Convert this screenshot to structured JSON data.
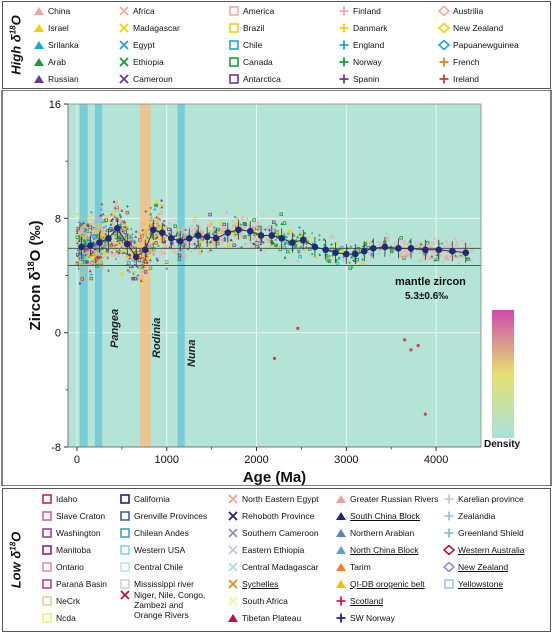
{
  "top_legend": {
    "title_main": "High δ",
    "title_sup": "18",
    "title_end": "O",
    "items": [
      {
        "label": "China",
        "marker": "tri-up",
        "color": "#f4a6a6"
      },
      {
        "label": "Africa",
        "marker": "x",
        "color": "#f4a6a6"
      },
      {
        "label": "America",
        "marker": "square",
        "color": "#f4a6a6"
      },
      {
        "label": "Finland",
        "marker": "plus",
        "color": "#f4a6a6"
      },
      {
        "label": "Austrilia",
        "marker": "diamond",
        "color": "#f4a6a6"
      },
      {
        "label": "Israel",
        "marker": "tri-up",
        "color": "#f2d000"
      },
      {
        "label": "Madagascar",
        "marker": "x",
        "color": "#f2d000"
      },
      {
        "label": "Brazil",
        "marker": "square",
        "color": "#f2d000"
      },
      {
        "label": "Danmark",
        "marker": "plus",
        "color": "#f2d000"
      },
      {
        "label": "New Zealand",
        "marker": "diamond",
        "color": "#f2d000"
      },
      {
        "label": "Srilanka",
        "marker": "tri-up",
        "color": "#1ba4d8"
      },
      {
        "label": "Egypt",
        "marker": "x",
        "color": "#1ba4d8"
      },
      {
        "label": "Chile",
        "marker": "square",
        "color": "#1ba4d8"
      },
      {
        "label": "England",
        "marker": "plus",
        "color": "#1ba4d8"
      },
      {
        "label": "Papuanewguinea",
        "marker": "diamond",
        "color": "#1ba4d8"
      },
      {
        "label": "Arab",
        "marker": "tri-up",
        "color": "#1a9a3a"
      },
      {
        "label": "Ethiopia",
        "marker": "x",
        "color": "#1a9a3a"
      },
      {
        "label": "Canada",
        "marker": "square",
        "color": "#1a9a3a"
      },
      {
        "label": "Norway",
        "marker": "plus",
        "color": "#1a9a3a"
      },
      {
        "label": "French",
        "marker": "plus",
        "color": "#f07a20"
      },
      {
        "label": "Russian",
        "marker": "tri-up",
        "color": "#6a3a9a"
      },
      {
        "label": "Cameroun",
        "marker": "x",
        "color": "#6a3a9a"
      },
      {
        "label": "Antarctica",
        "marker": "square",
        "color": "#6a3a9a"
      },
      {
        "label": "Spanin",
        "marker": "plus",
        "color": "#6a3a9a"
      },
      {
        "label": "Ireland",
        "marker": "plus",
        "color": "#c8402a"
      }
    ]
  },
  "bottom_legend": {
    "title_main": "Low δ",
    "title_sup": "18",
    "title_end": "O",
    "items": [
      {
        "label": "Idaho",
        "marker": "square",
        "color": "#c8205a",
        "underline": false
      },
      {
        "label": "California",
        "marker": "square",
        "color": "#20208a",
        "underline": false
      },
      {
        "label": "North Eastern Egypt",
        "marker": "x",
        "color": "#f0a0a0",
        "underline": false
      },
      {
        "label": "Greater Russian Rivers",
        "marker": "tri-up",
        "color": "#f0a0a0",
        "underline": false
      },
      {
        "label": "Karelian province",
        "marker": "plus",
        "color": "#c0c8e0",
        "underline": false
      },
      {
        "label": "Slave Craton",
        "marker": "square",
        "color": "#e06090",
        "underline": false
      },
      {
        "label": "Grenville Provinces",
        "marker": "square",
        "color": "#4060a0",
        "underline": false
      },
      {
        "label": "Rehoboth Province",
        "marker": "x",
        "color": "#20208a",
        "underline": false
      },
      {
        "label": "South China Block",
        "marker": "tri-up",
        "color": "#20208a",
        "underline": true
      },
      {
        "label": "Zealandia",
        "marker": "plus",
        "color": "#a0c0e0",
        "underline": false
      },
      {
        "label": "Washington",
        "marker": "square",
        "color": "#a04090",
        "underline": false
      },
      {
        "label": "Chilean Andes",
        "marker": "square",
        "color": "#40a0c0",
        "underline": false
      },
      {
        "label": "Southern Cameroon",
        "marker": "x",
        "color": "#9090c0",
        "underline": false
      },
      {
        "label": "Northern Arabian",
        "marker": "tri-up",
        "color": "#6080c0",
        "underline": false
      },
      {
        "label": "Greenland Shield",
        "marker": "plus",
        "color": "#80c0e0",
        "underline": false
      },
      {
        "label": "Manitoba",
        "marker": "square",
        "color": "#902080",
        "underline": false
      },
      {
        "label": "Western USA",
        "marker": "square",
        "color": "#80d0f0",
        "underline": false
      },
      {
        "label": "Eastern Ethiopia",
        "marker": "x",
        "color": "#c0c8e0",
        "underline": false
      },
      {
        "label": "North China Block",
        "marker": "tri-up",
        "color": "#60a0d0",
        "underline": true
      },
      {
        "label": "Western Australia",
        "marker": "diamond",
        "color": "#c01040",
        "underline": true
      },
      {
        "label": "Ontario",
        "marker": "square",
        "color": "#e090c0",
        "underline": false
      },
      {
        "label": "Central Chile",
        "marker": "square",
        "color": "#c0e0f0",
        "underline": false
      },
      {
        "label": "Central Madagascar",
        "marker": "x",
        "color": "#b0d8f0",
        "underline": false
      },
      {
        "label": "Tarim",
        "marker": "tri-up",
        "color": "#f08020",
        "underline": false
      },
      {
        "label": "New Zealand",
        "marker": "diamond",
        "color": "#9090d0",
        "underline": true
      },
      {
        "label": "Paraná Basin",
        "marker": "square",
        "color": "#c04090",
        "underline": false
      },
      {
        "label": "Mississippi river",
        "marker": "square",
        "color": "#d0d0e8",
        "underline": false
      },
      {
        "label": "Sychelles",
        "marker": "x",
        "color": "#e09020",
        "underline": true
      },
      {
        "label": "QI-DB orogenic belt",
        "marker": "tri-up",
        "color": "#f0c000",
        "underline": true
      },
      {
        "label": "Yellowstone",
        "marker": "square",
        "color": "#a0c8e8",
        "underline": true
      },
      {
        "label": "NeCrk",
        "marker": "square",
        "color": "#e0d0a0",
        "underline": false
      },
      {
        "label": "Niger, Nile, Congo,",
        "marker": "x",
        "color": "#c01040",
        "underline": false
      },
      {
        "label": "Zambezi and",
        "marker": "none",
        "color": "#c01040",
        "underline": false
      },
      {
        "label": "Orange Rivers",
        "marker": "none",
        "color": "#c01040",
        "underline": false
      },
      {
        "label": "South Africa",
        "marker": "x",
        "color": "#f0f0a0",
        "underline": false
      },
      {
        "label": "Scotland",
        "marker": "plus",
        "color": "#e01050",
        "underline": true
      },
      {
        "label": "Ncda",
        "marker": "square",
        "color": "#f0f080",
        "underline": false
      },
      {
        "label": "Tibetan Plateau",
        "marker": "tri-up",
        "color": "#c01040",
        "underline": false
      },
      {
        "label": "SW Norway",
        "marker": "plus",
        "color": "#20208a",
        "underline": false
      }
    ]
  },
  "chart_data": {
    "type": "scatter",
    "title": "",
    "xlabel": "Age (Ma)",
    "ylabel_main": "Zircon δ",
    "ylabel_sup": "18",
    "ylabel_end": "O (‰)",
    "xlim": [
      -100,
      4500
    ],
    "ylim": [
      -8,
      16
    ],
    "x_ticks": [
      0,
      1000,
      2000,
      3000,
      4000
    ],
    "y_ticks": [
      -8,
      0,
      8,
      16
    ],
    "mantle_band": [
      4.7,
      5.9
    ],
    "mantle_label_1": "mantle zircon",
    "mantle_label_2": "5.3±0.6‰",
    "colorbar_label": "Density",
    "colorbar_colors": [
      "#d04ab0",
      "#e6e070",
      "#a8e2dc"
    ],
    "background_color": "#b3e4d6",
    "events": [
      {
        "name": "Pangea",
        "x_range": [
          30,
          120
        ],
        "color": "#6cc8d8"
      },
      {
        "name": "",
        "x_range": [
          200,
          280
        ],
        "color": "#6cc8d8"
      },
      {
        "name": "Rodinia",
        "x_range": [
          700,
          820
        ],
        "color": "#f6c08a"
      },
      {
        "name": "Nuna",
        "x_range": [
          1120,
          1200
        ],
        "color": "#6cc8d8"
      }
    ],
    "mean_series": {
      "name": "",
      "x": [
        50,
        150,
        250,
        350,
        450,
        560,
        660,
        760,
        850,
        950,
        1050,
        1150,
        1250,
        1350,
        1450,
        1550,
        1680,
        1800,
        1930,
        2050,
        2170,
        2280,
        2400,
        2520,
        2650,
        2770,
        2880,
        3000,
        3100,
        3200,
        3300,
        3430,
        3580,
        3720,
        3880,
        4030,
        4180,
        4330
      ],
      "y": [
        6.0,
        6.1,
        6.3,
        6.6,
        7.3,
        6.2,
        5.3,
        5.8,
        7.2,
        7.0,
        6.6,
        6.4,
        6.6,
        6.8,
        6.7,
        6.6,
        7.0,
        7.2,
        7.1,
        6.8,
        6.8,
        6.6,
        6.3,
        6.5,
        6.0,
        5.8,
        5.6,
        5.5,
        5.5,
        5.7,
        5.9,
        6.0,
        5.9,
        5.9,
        5.8,
        5.8,
        5.7,
        5.6
      ]
    },
    "outliers": [
      {
        "x": 3650,
        "y": -0.5
      },
      {
        "x": 3720,
        "y": -1.2
      },
      {
        "x": 3800,
        "y": -0.9
      },
      {
        "x": 3880,
        "y": -5.7
      },
      {
        "x": 2200,
        "y": -1.8
      },
      {
        "x": 2460,
        "y": 0.3
      }
    ]
  }
}
